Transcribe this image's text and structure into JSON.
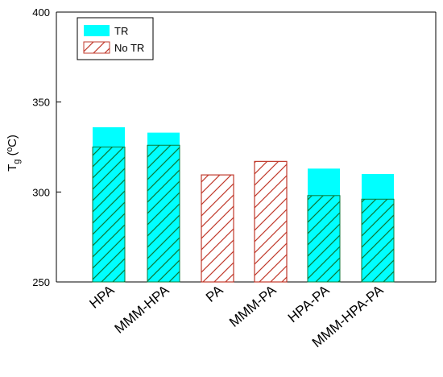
{
  "chart_data": {
    "type": "bar",
    "categories": [
      "HPA",
      "MMM-HPA",
      "PA",
      "MMM-PA",
      "HPA-PA",
      "MMM-HPA-PA"
    ],
    "series": [
      {
        "name": "TR",
        "values": [
          336,
          333,
          null,
          null,
          313,
          310
        ]
      },
      {
        "name": "No TR",
        "values": [
          325,
          326,
          309.5,
          317,
          298,
          296
        ]
      }
    ],
    "ylabel": {
      "main": "T",
      "sub": "g",
      "unit": " (ºC)"
    },
    "ylim": [
      250,
      400
    ],
    "yticks": [
      250,
      300,
      350,
      400
    ],
    "grid": false,
    "legend_placement": "top-left",
    "colors": {
      "TR": "#00ffff",
      "no_tr_border": "#c0392b",
      "no_tr_hatch": "#c0392b",
      "overlap_hatch": "#0a7a3a"
    }
  }
}
